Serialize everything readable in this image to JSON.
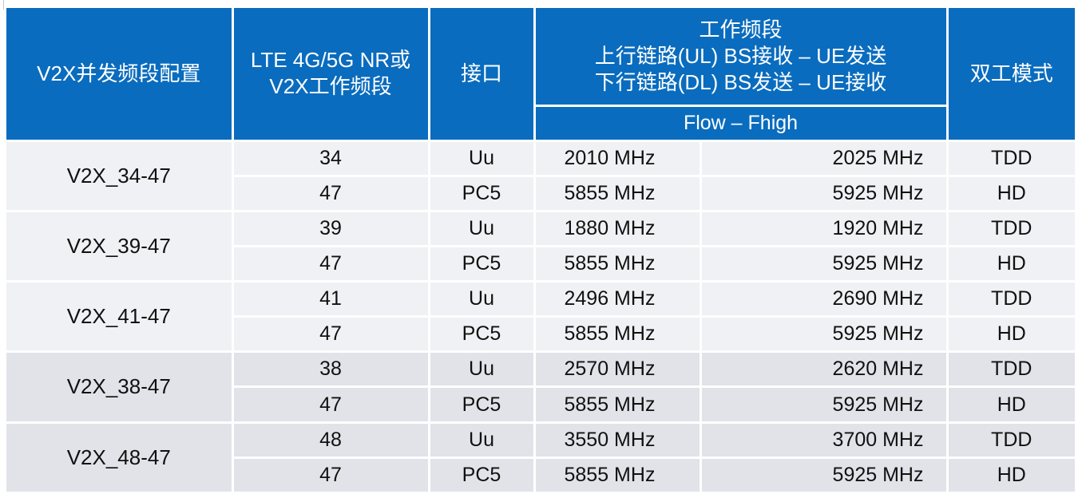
{
  "header": {
    "config": "V2X并发频段配置",
    "band_line1": "LTE 4G/5G NR或",
    "band_line2": "V2X工作频段",
    "interface": "接口",
    "operating_band_title": "工作频段",
    "uplink": "上行链路(UL) BS接收 – UE发送",
    "downlink": "下行链路(DL) BS发送 – UE接收",
    "flow_fhigh": "Flow – Fhigh",
    "duplex": "双工模式"
  },
  "groups": [
    {
      "config": "V2X_34-47",
      "rows": [
        {
          "band": "34",
          "interface": "Uu",
          "flow": "2010 MHz",
          "fhigh": "2025 MHz",
          "duplex": "TDD"
        },
        {
          "band": "47",
          "interface": "PC5",
          "flow": "5855 MHz",
          "fhigh": "5925 MHz",
          "duplex": "HD"
        }
      ]
    },
    {
      "config": "V2X_39-47",
      "rows": [
        {
          "band": "39",
          "interface": "Uu",
          "flow": "1880 MHz",
          "fhigh": "1920 MHz",
          "duplex": "TDD"
        },
        {
          "band": "47",
          "interface": "PC5",
          "flow": "5855 MHz",
          "fhigh": "5925 MHz",
          "duplex": "HD"
        }
      ]
    },
    {
      "config": "V2X_41-47",
      "rows": [
        {
          "band": "41",
          "interface": "Uu",
          "flow": "2496 MHz",
          "fhigh": "2690 MHz",
          "duplex": "TDD"
        },
        {
          "band": "47",
          "interface": "PC5",
          "flow": "5855 MHz",
          "fhigh": "5925 MHz",
          "duplex": "HD"
        }
      ]
    },
    {
      "config": "V2X_38-47",
      "rows": [
        {
          "band": "38",
          "interface": "Uu",
          "flow": "2570 MHz",
          "fhigh": "2620 MHz",
          "duplex": "TDD"
        },
        {
          "band": "47",
          "interface": "PC5",
          "flow": "5855 MHz",
          "fhigh": "5925 MHz",
          "duplex": "HD"
        }
      ]
    },
    {
      "config": "V2X_48-47",
      "rows": [
        {
          "band": "48",
          "interface": "Uu",
          "flow": "3550 MHz",
          "fhigh": "3700 MHz",
          "duplex": "TDD"
        },
        {
          "band": "47",
          "interface": "PC5",
          "flow": "5855 MHz",
          "fhigh": "5925 MHz",
          "duplex": "HD"
        }
      ]
    }
  ],
  "colors": {
    "header_bg": "#0a6cbe",
    "row_light": "#f0f1f4",
    "row_dark": "#e1e3e8"
  }
}
